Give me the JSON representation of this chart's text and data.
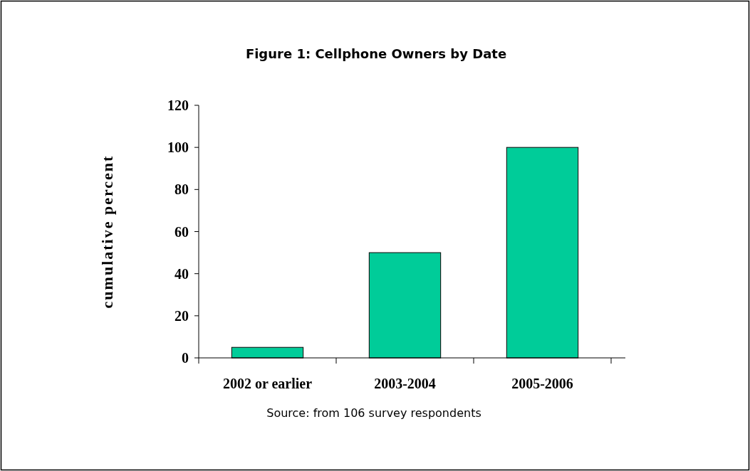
{
  "chart_data": {
    "type": "bar",
    "title": "Figure 1: Cellphone Owners by Date",
    "ylabel": "cumulative percent",
    "categories": [
      "2002 or earlier",
      "2003-2004",
      "2005-2006"
    ],
    "values": [
      5,
      50,
      100
    ],
    "color": "#00cc99",
    "ylim": [
      0,
      120
    ],
    "yticks": [
      0,
      20,
      40,
      60,
      80,
      100,
      120
    ],
    "grid": false,
    "annotations": [
      "Source: from 106 survey respondents"
    ]
  }
}
